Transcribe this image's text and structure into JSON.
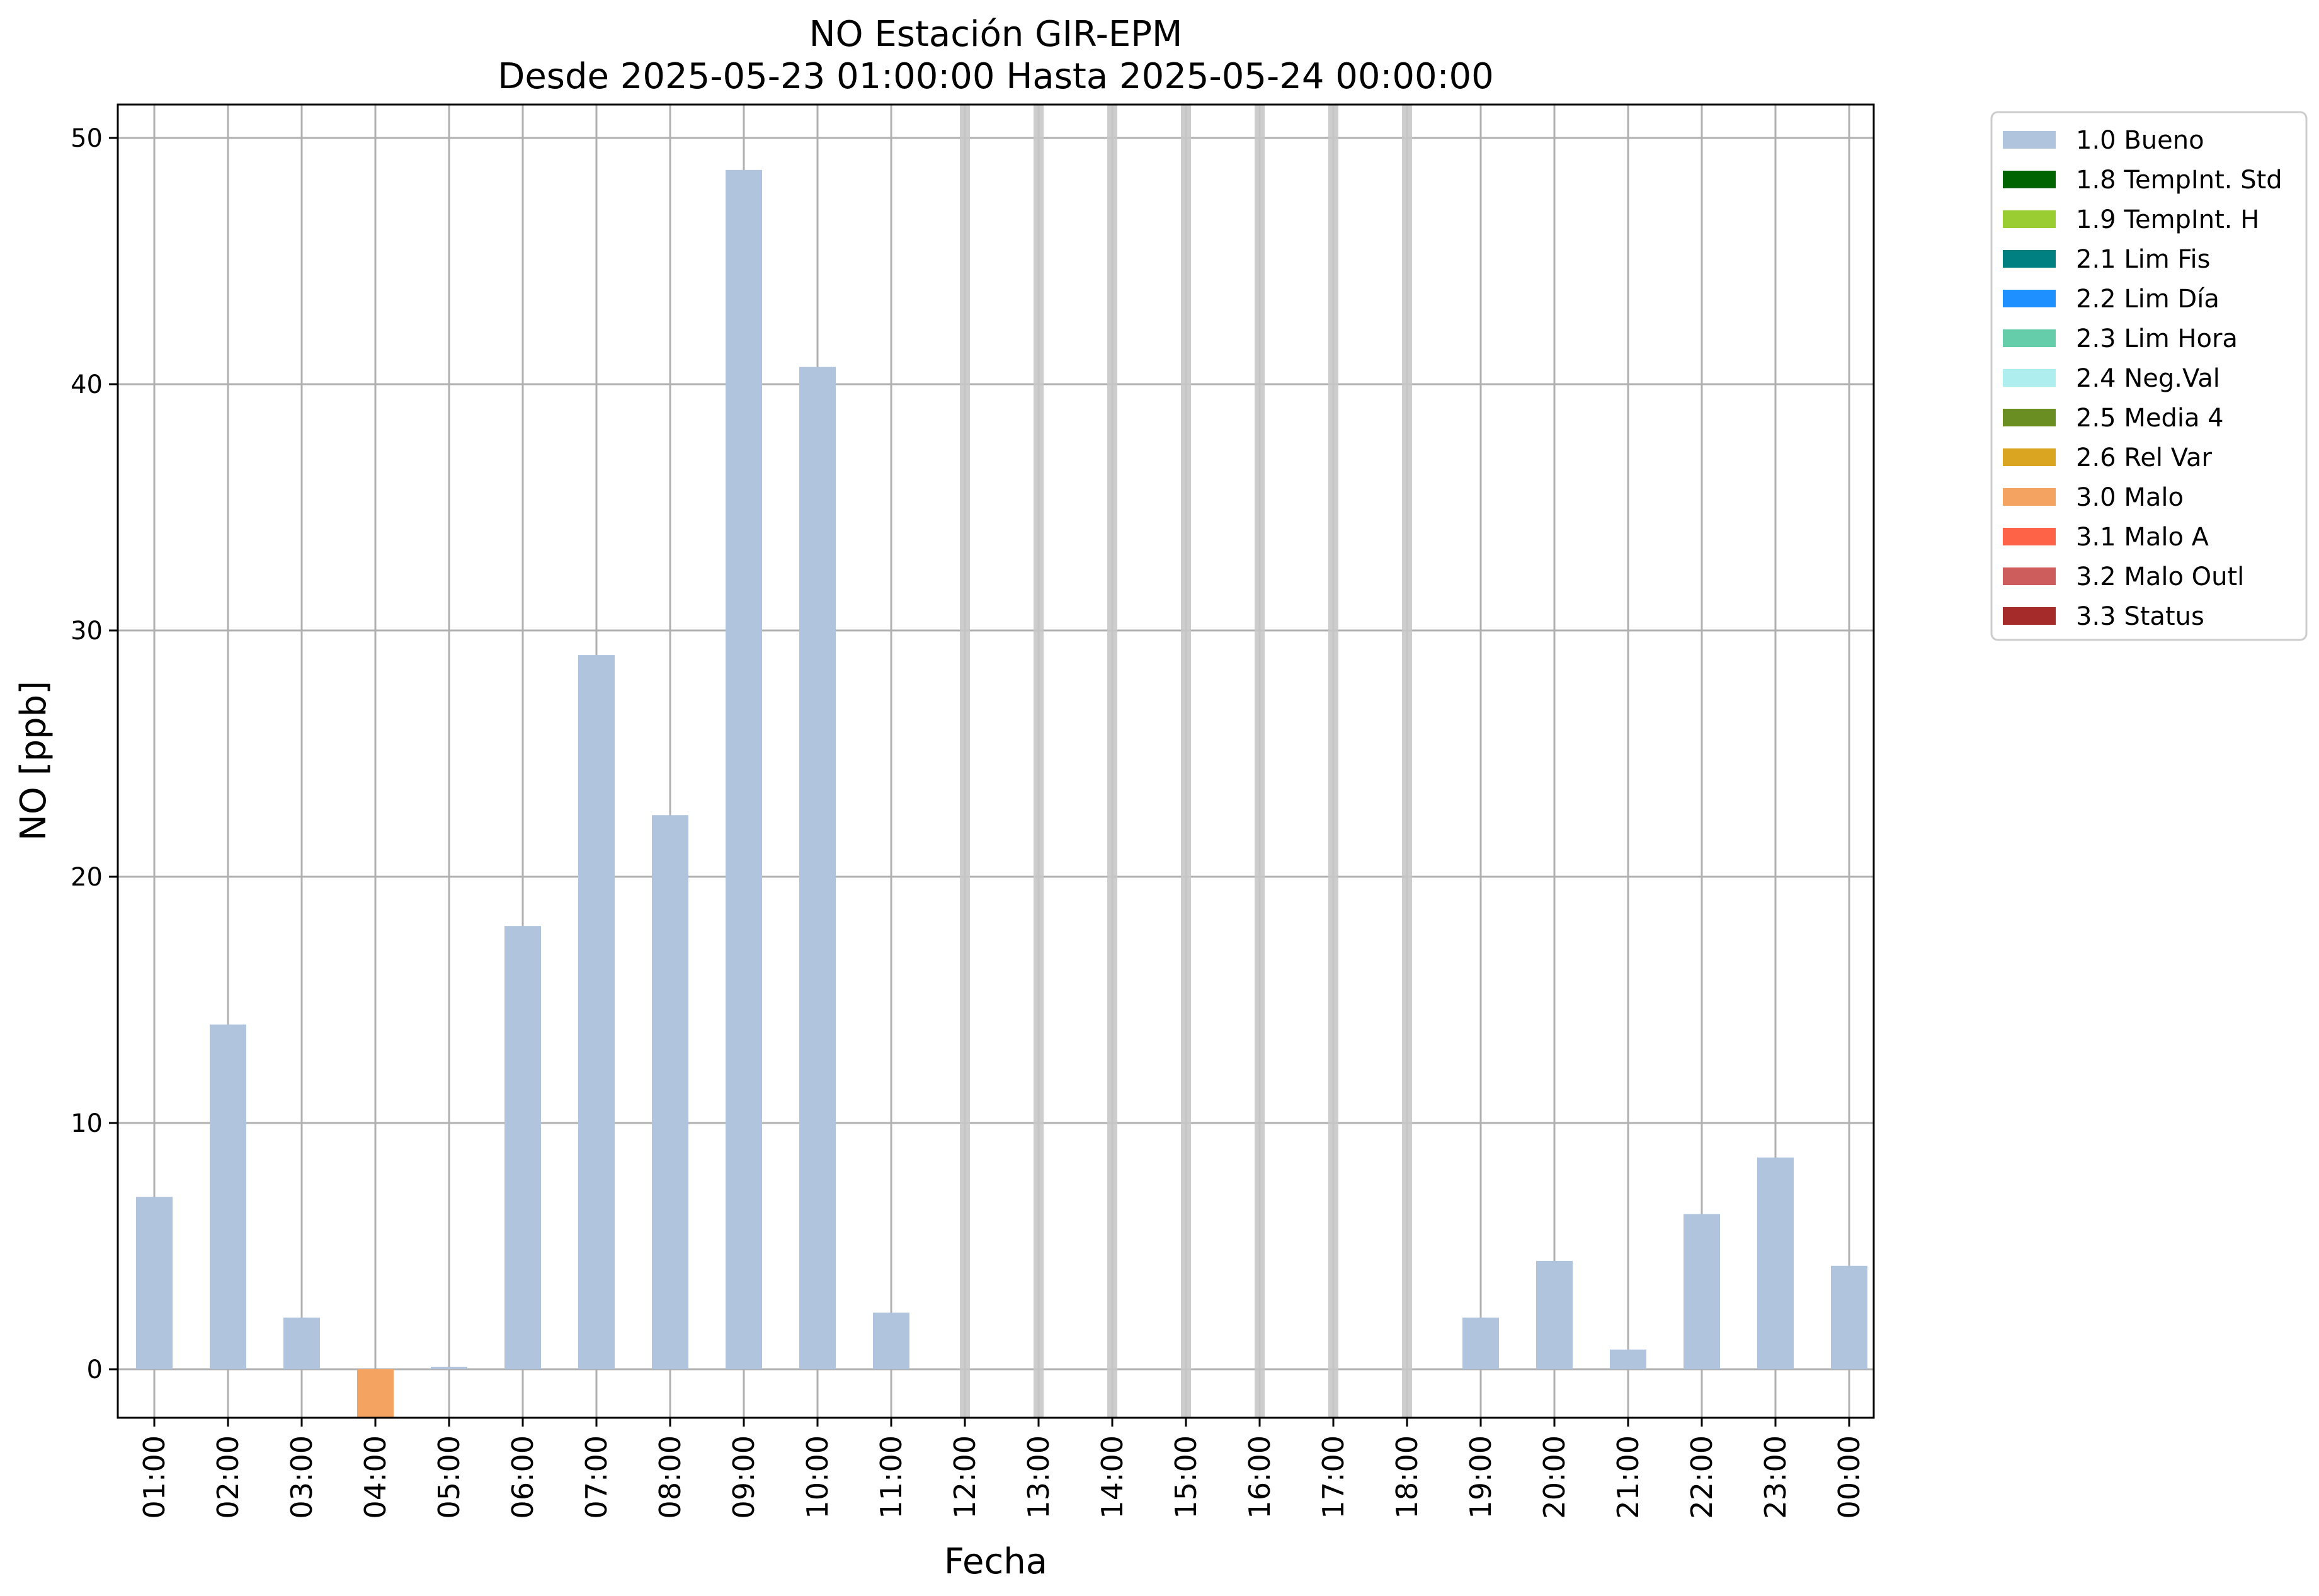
{
  "chart_data": {
    "type": "bar",
    "title": "NO Estación GIR-EPM",
    "subtitle": "Desde 2025-05-23 01:00:00 Hasta 2025-05-24 00:00:00",
    "xlabel": "Fecha",
    "ylabel": "NO [ppb]",
    "ylim": [
      -2,
      50
    ],
    "yticks": [
      0,
      10,
      20,
      30,
      40,
      50
    ],
    "ytick_labels": [
      "0",
      "10",
      "20",
      "30",
      "40",
      "50"
    ],
    "grid": true,
    "categories": [
      "01:00",
      "02:00",
      "03:00",
      "04:00",
      "05:00",
      "06:00",
      "07:00",
      "08:00",
      "09:00",
      "10:00",
      "11:00",
      "12:00",
      "13:00",
      "14:00",
      "15:00",
      "16:00",
      "17:00",
      "18:00",
      "19:00",
      "20:00",
      "21:00",
      "22:00",
      "23:00",
      "00:00"
    ],
    "values": [
      7.0,
      14.0,
      2.1,
      -2.0,
      0.1,
      18.0,
      29.0,
      22.5,
      48.7,
      40.7,
      2.3,
      null,
      null,
      null,
      null,
      null,
      null,
      null,
      2.1,
      4.4,
      0.8,
      6.3,
      8.6,
      4.2
    ],
    "flags": [
      "1.0 Bueno",
      "1.0 Bueno",
      "1.0 Bueno",
      "3.0 Malo",
      "1.0 Bueno",
      "1.0 Bueno",
      "1.0 Bueno",
      "1.0 Bueno",
      "1.0 Bueno",
      "1.0 Bueno",
      "1.0 Bueno",
      "missing",
      "missing",
      "missing",
      "missing",
      "missing",
      "missing",
      "missing",
      "1.0 Bueno",
      "1.0 Bueno",
      "1.0 Bueno",
      "1.0 Bueno",
      "1.0 Bueno",
      "1.0 Bueno"
    ],
    "missing_marker_color": "#c8c8c8",
    "legend_position": "outside-top-right",
    "legend": [
      {
        "label": "1.0 Bueno",
        "color": "#b0c4de"
      },
      {
        "label": "1.8 TempInt. Std",
        "color": "#006400"
      },
      {
        "label": "1.9 TempInt. H",
        "color": "#9acd32"
      },
      {
        "label": "2.1 Lim Fis",
        "color": "#008080"
      },
      {
        "label": "2.2 Lim Día",
        "color": "#1e90ff"
      },
      {
        "label": "2.3 Lim Hora",
        "color": "#66cdaa"
      },
      {
        "label": "2.4 Neg.Val",
        "color": "#afeeee"
      },
      {
        "label": "2.5 Media 4",
        "color": "#6b8e23"
      },
      {
        "label": "2.6 Rel Var",
        "color": "#daa520"
      },
      {
        "label": "3.0 Malo",
        "color": "#f4a460"
      },
      {
        "label": "3.1 Malo A",
        "color": "#ff6347"
      },
      {
        "label": "3.2 Malo Outl",
        "color": "#cd5c5c"
      },
      {
        "label": "3.3 Status",
        "color": "#a52a2a"
      }
    ]
  }
}
